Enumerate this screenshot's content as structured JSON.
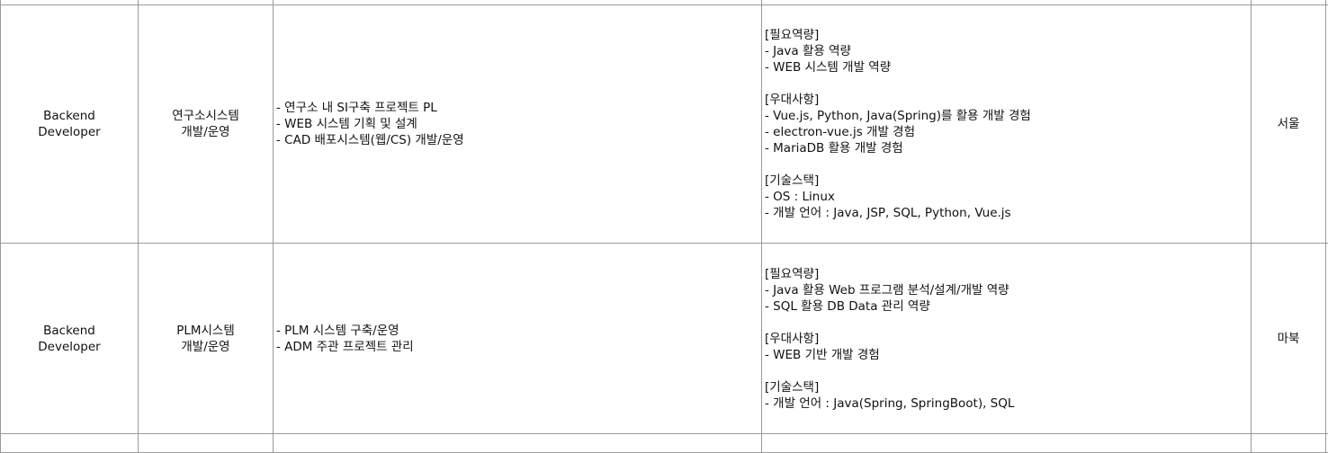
{
  "rows": [
    {
      "position": [
        "Backend",
        "Developer"
      ],
      "team": [
        "연구소시스템",
        "개발/운영"
      ],
      "duties": [
        "- 연구소 내 SI구축 프로젝트 PL",
        "- WEB 시스템 기획 및 설계",
        "- CAD 배포시스템(웹/CS) 개발/운영"
      ],
      "requirements": {
        "required_title": "[필요역량]",
        "required": [
          "- Java 활용 역량",
          "- WEB 시스템 개발 역량"
        ],
        "preferred_title": "[우대사항]",
        "preferred": [
          "- Vue.js, Python, Java(Spring)를 활용 개발 경험",
          "- electron-vue.js 개발 경험",
          "- MariaDB 활용 개발 경험"
        ],
        "stack_title": "[기술스택]",
        "stack": [
          "- OS : Linux",
          "- 개발 언어 : Java, JSP, SQL, Python, Vue.js"
        ]
      },
      "location": "서울"
    },
    {
      "position": [
        "Backend",
        "Developer"
      ],
      "team": [
        "PLM시스템",
        "개발/운영"
      ],
      "duties": [
        "- PLM 시스템 구축/운영",
        "- ADM 주관 프로젝트 관리"
      ],
      "requirements": {
        "required_title": "[필요역량]",
        "required": [
          "- Java 활용 Web 프로그램 분석/설계/개발 역량",
          "- SQL 활용 DB Data 관리 역량"
        ],
        "preferred_title": "[우대사항]",
        "preferred": [
          "- WEB 기반 개발 경험"
        ],
        "stack_title": "[기술스택]",
        "stack": [
          "- 개발 언어 : Java(Spring, SpringBoot), SQL"
        ]
      },
      "location": "마북"
    }
  ]
}
